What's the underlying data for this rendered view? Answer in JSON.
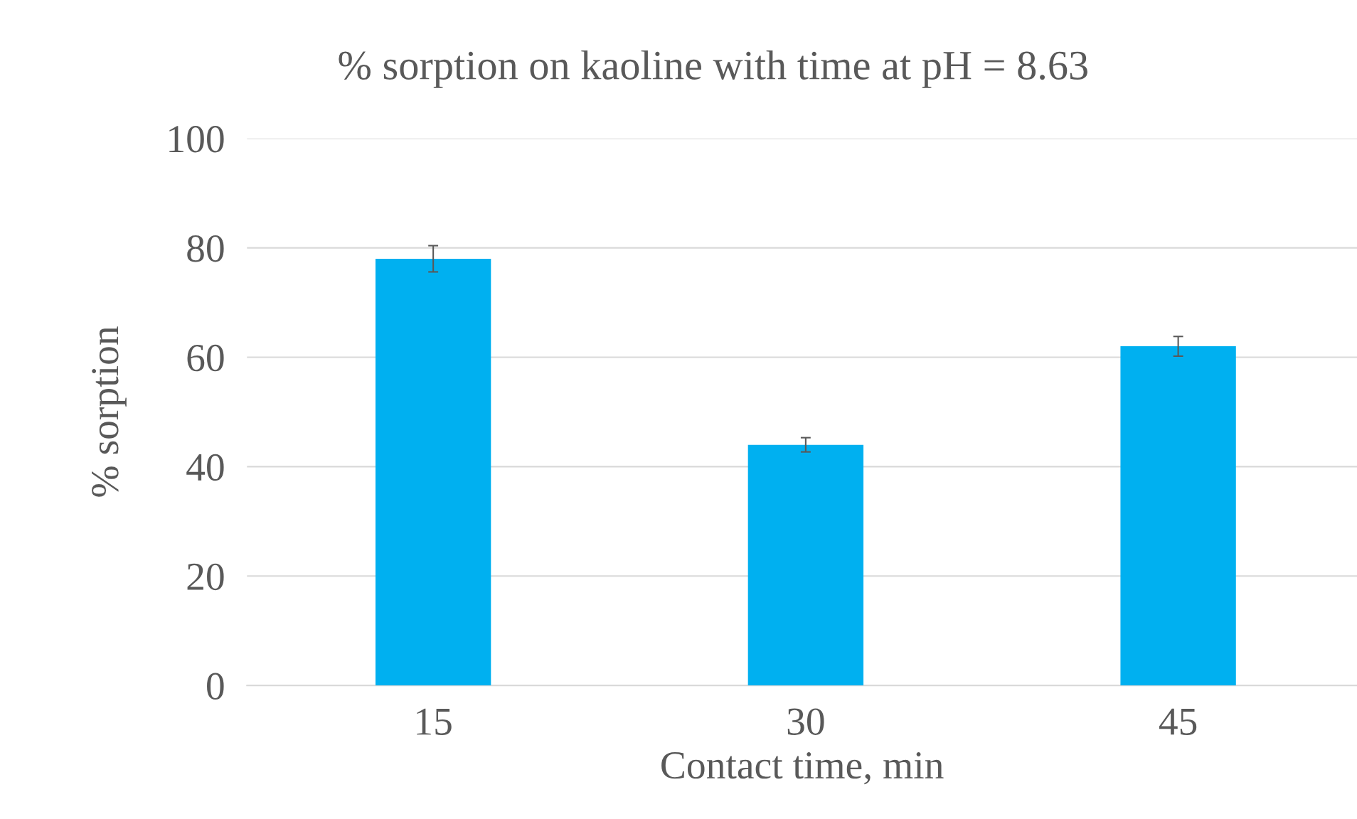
{
  "chart_data": {
    "type": "bar",
    "title": "% sorption on kaoline with time at pH = 8.63",
    "xlabel": "Contact time, min",
    "ylabel": "% sorption",
    "categories": [
      "15",
      "30",
      "45"
    ],
    "values": [
      78,
      44,
      62
    ],
    "errors": [
      2.4,
      1.3,
      1.8
    ],
    "color": "#00b0f0",
    "ylim": [
      0,
      100
    ],
    "yticks": [
      0,
      20,
      40,
      60,
      80,
      100
    ],
    "grid": "y"
  }
}
